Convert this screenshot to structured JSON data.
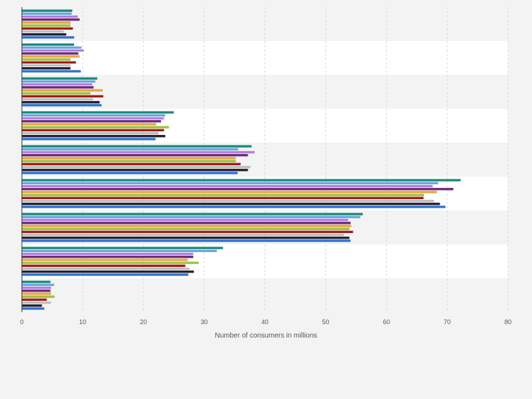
{
  "chart_data": {
    "type": "bar",
    "orientation": "horizontal",
    "title": "",
    "xlabel": "Number of consumers in millions",
    "ylabel": "",
    "xlim": [
      0,
      80
    ],
    "xticks": [
      0,
      10,
      20,
      30,
      40,
      50,
      60,
      70,
      80
    ],
    "grid": true,
    "legend": "none",
    "category_count": 9,
    "series_colors": [
      "#1a8a7a",
      "#6aa8dc",
      "#b57de0",
      "#6b2a7a",
      "#e8a640",
      "#9bc43c",
      "#a61c1c",
      "#bdbdbd",
      "#1f1f2e",
      "#2f6fd1"
    ],
    "groups": [
      {
        "values": [
          8.3,
          8.2,
          9.2,
          9.5,
          8.0,
          8.0,
          8.4,
          6.9,
          7.3,
          8.6
        ]
      },
      {
        "values": [
          8.6,
          9.8,
          10.2,
          9.3,
          9.5,
          8.0,
          8.9,
          8.0,
          8.0,
          9.7
        ]
      },
      {
        "values": [
          12.4,
          12.1,
          11.6,
          11.8,
          13.3,
          11.3,
          13.4,
          11.7,
          12.8,
          13.1
        ]
      },
      {
        "values": [
          25.0,
          23.6,
          23.4,
          22.9,
          22.1,
          24.2,
          23.4,
          22.5,
          23.6,
          22.0
        ]
      },
      {
        "values": [
          37.8,
          35.6,
          38.3,
          37.2,
          35.2,
          35.2,
          36.0,
          37.6,
          37.2,
          35.5
        ]
      },
      {
        "values": [
          72.2,
          68.5,
          67.6,
          71.0,
          68.3,
          66.2,
          66.1,
          67.8,
          68.8,
          69.7
        ]
      },
      {
        "values": [
          56.1,
          55.7,
          53.7,
          54.1,
          54.2,
          53.9,
          54.5,
          53.0,
          53.9,
          54.1
        ]
      },
      {
        "values": [
          33.1,
          32.1,
          28.2,
          28.2,
          27.3,
          29.1,
          26.9,
          27.6,
          28.3,
          27.4
        ]
      },
      {
        "values": [
          4.7,
          5.3,
          4.8,
          4.7,
          4.8,
          5.4,
          4.1,
          4.8,
          3.3,
          3.7
        ]
      }
    ]
  }
}
